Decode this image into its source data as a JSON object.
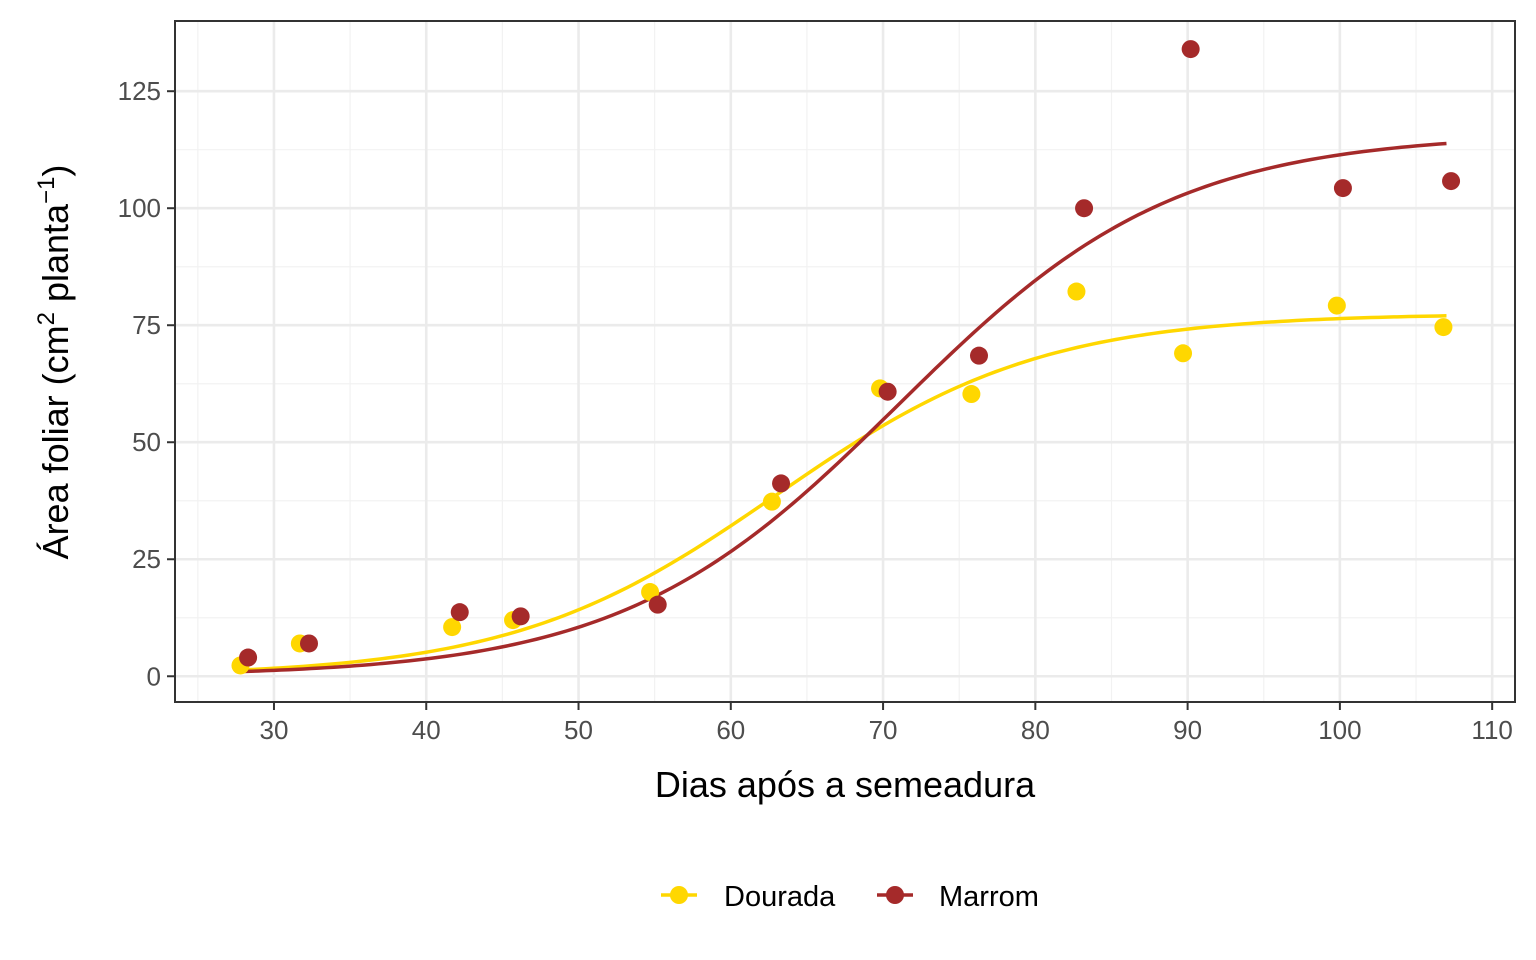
{
  "chart_data": {
    "type": "scatter",
    "xlabel": "Dias após a semeadura",
    "ylabel": {
      "prefix": "Área foliar (cm",
      "sup1": "2",
      "middle": " planta",
      "sup2": "−1",
      "suffix": ")"
    },
    "xlim": [
      23.5,
      111.5
    ],
    "ylim": [
      -5.5,
      140
    ],
    "xticks": [
      30,
      40,
      50,
      60,
      70,
      80,
      90,
      100,
      110
    ],
    "yticks": [
      0,
      25,
      50,
      75,
      100,
      125
    ],
    "grid": true,
    "legend_position": "bottom",
    "series": [
      {
        "name": "Dourada",
        "color": "#FFD700",
        "points": [
          {
            "x": 27.8,
            "y": 2.3
          },
          {
            "x": 31.7,
            "y": 7.0
          },
          {
            "x": 41.7,
            "y": 10.5
          },
          {
            "x": 45.7,
            "y": 12.0
          },
          {
            "x": 54.7,
            "y": 18.0
          },
          {
            "x": 62.7,
            "y": 37.3
          },
          {
            "x": 69.8,
            "y": 61.5
          },
          {
            "x": 75.8,
            "y": 60.3
          },
          {
            "x": 82.7,
            "y": 82.2
          },
          {
            "x": 89.7,
            "y": 69.0
          },
          {
            "x": 99.8,
            "y": 79.2
          },
          {
            "x": 106.8,
            "y": 74.6
          }
        ],
        "fit": {
          "asymptote": 77.5,
          "k": 0.115,
          "x0": 63.0,
          "x_start": 28,
          "x_end": 107
        }
      },
      {
        "name": "Marrom",
        "color": "#A52A2A",
        "points": [
          {
            "x": 28.3,
            "y": 4.0
          },
          {
            "x": 32.3,
            "y": 7.0
          },
          {
            "x": 42.2,
            "y": 13.7
          },
          {
            "x": 46.2,
            "y": 12.8
          },
          {
            "x": 55.2,
            "y": 15.3
          },
          {
            "x": 63.3,
            "y": 41.2
          },
          {
            "x": 70.3,
            "y": 60.8
          },
          {
            "x": 76.3,
            "y": 68.5
          },
          {
            "x": 83.2,
            "y": 100.0
          },
          {
            "x": 90.2,
            "y": 134.0
          },
          {
            "x": 100.2,
            "y": 104.3
          },
          {
            "x": 107.3,
            "y": 105.8
          }
        ],
        "fit": {
          "asymptote": 116.0,
          "k": 0.11,
          "x0": 71.0,
          "x_start": 28,
          "x_end": 107
        }
      }
    ]
  }
}
